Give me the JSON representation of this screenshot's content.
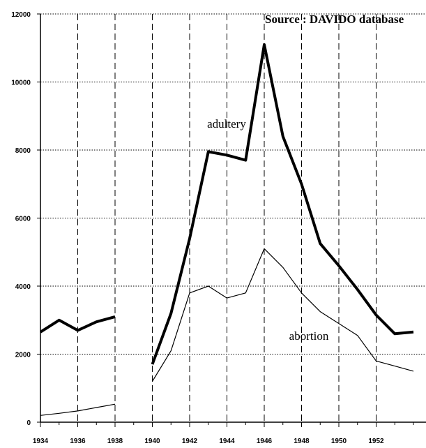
{
  "chart_data": {
    "type": "line",
    "title": "Source : DAVIDO database",
    "x": [
      1934,
      1935,
      1936,
      1937,
      1938,
      1939,
      1940,
      1941,
      1942,
      1943,
      1944,
      1945,
      1946,
      1947,
      1948,
      1949,
      1950,
      1951,
      1952,
      1953,
      1954
    ],
    "series": [
      {
        "name": "adultery",
        "color": "#000000",
        "width": 4,
        "values": [
          2650,
          3000,
          2700,
          2950,
          3100,
          null,
          1700,
          3200,
          5400,
          7950,
          7850,
          7700,
          11100,
          8400,
          7000,
          5250,
          4600,
          3900,
          3150,
          2600,
          2650
        ]
      },
      {
        "name": "abortion",
        "color": "#000000",
        "width": 1.2,
        "values": [
          200,
          260,
          330,
          430,
          530,
          null,
          1200,
          2100,
          3800,
          4000,
          3650,
          3800,
          5100,
          4550,
          3800,
          3250,
          2900,
          2550,
          1800,
          1650,
          1500
        ]
      }
    ],
    "xlim": [
      1934,
      1954
    ],
    "xticks": [
      1934,
      1936,
      1938,
      1940,
      1942,
      1944,
      1946,
      1948,
      1950,
      1952
    ],
    "ylim": [
      0,
      12000
    ],
    "yticks": [
      0,
      2000,
      4000,
      6000,
      8000,
      10000,
      12000
    ],
    "grid": true
  }
}
